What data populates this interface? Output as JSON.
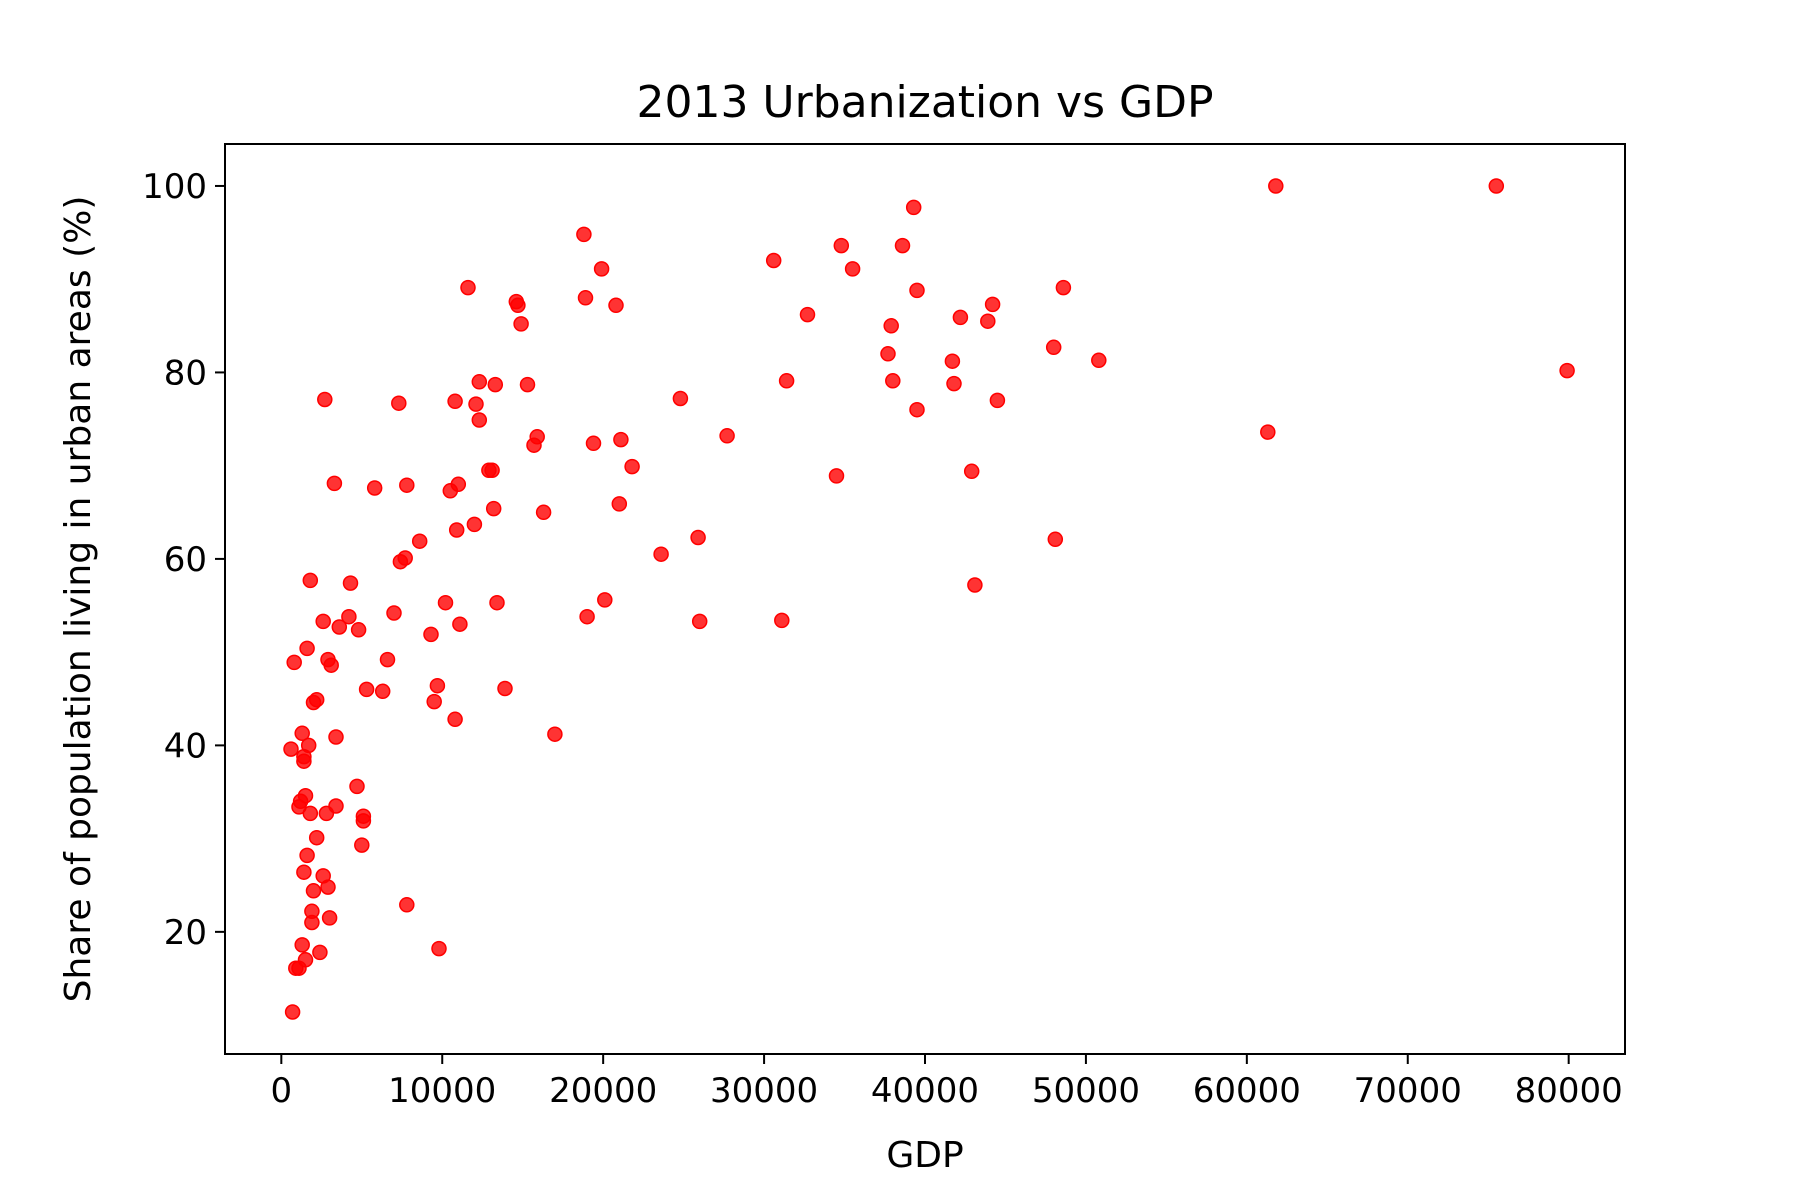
{
  "chart_data": {
    "type": "scatter",
    "title": "2013 Urbanization vs GDP",
    "xlabel": "GDP",
    "ylabel": "Share of population living in urban areas (%)",
    "xlim": [
      -3500,
      83500
    ],
    "ylim": [
      6.9,
      104.5
    ],
    "xticks": [
      0,
      10000,
      20000,
      30000,
      40000,
      50000,
      60000,
      70000,
      80000
    ],
    "yticks": [
      20,
      40,
      60,
      80,
      100
    ],
    "grid": false,
    "marker_color": "#ff0000",
    "series": [
      {
        "points": [
          [
            600,
            39.6
          ],
          [
            700,
            11.4
          ],
          [
            800,
            48.9
          ],
          [
            900,
            16.1
          ],
          [
            1100,
            16.1
          ],
          [
            1100,
            33.4
          ],
          [
            1200,
            34.0
          ],
          [
            1300,
            41.3
          ],
          [
            1300,
            18.6
          ],
          [
            1400,
            38.3
          ],
          [
            1400,
            38.8
          ],
          [
            1400,
            26.4
          ],
          [
            1500,
            34.6
          ],
          [
            1500,
            17.0
          ],
          [
            1600,
            50.4
          ],
          [
            1600,
            28.2
          ],
          [
            1700,
            40.0
          ],
          [
            1800,
            32.7
          ],
          [
            1800,
            57.7
          ],
          [
            1900,
            21.0
          ],
          [
            1900,
            22.2
          ],
          [
            2000,
            44.6
          ],
          [
            2000,
            24.4
          ],
          [
            2200,
            44.9
          ],
          [
            2200,
            30.1
          ],
          [
            2400,
            17.8
          ],
          [
            2600,
            26.0
          ],
          [
            2600,
            53.3
          ],
          [
            2700,
            77.1
          ],
          [
            2800,
            32.7
          ],
          [
            2900,
            49.2
          ],
          [
            2900,
            24.8
          ],
          [
            3000,
            21.5
          ],
          [
            3100,
            48.6
          ],
          [
            3300,
            68.1
          ],
          [
            3400,
            40.9
          ],
          [
            3400,
            33.5
          ],
          [
            3600,
            52.7
          ],
          [
            4200,
            53.8
          ],
          [
            4300,
            57.4
          ],
          [
            4700,
            35.6
          ],
          [
            4800,
            52.4
          ],
          [
            5000,
            29.3
          ],
          [
            5100,
            32.4
          ],
          [
            5100,
            31.9
          ],
          [
            5300,
            46.0
          ],
          [
            5800,
            67.6
          ],
          [
            6300,
            45.8
          ],
          [
            6600,
            49.2
          ],
          [
            7000,
            54.2
          ],
          [
            7300,
            76.7
          ],
          [
            7400,
            59.7
          ],
          [
            7700,
            60.1
          ],
          [
            7800,
            67.9
          ],
          [
            7800,
            22.9
          ],
          [
            8600,
            61.9
          ],
          [
            9300,
            51.9
          ],
          [
            9500,
            44.7
          ],
          [
            9700,
            46.4
          ],
          [
            9800,
            18.2
          ],
          [
            10200,
            55.3
          ],
          [
            10500,
            67.3
          ],
          [
            10800,
            76.9
          ],
          [
            10800,
            42.8
          ],
          [
            10900,
            63.1
          ],
          [
            11000,
            68.0
          ],
          [
            11100,
            53.0
          ],
          [
            11600,
            89.1
          ],
          [
            12000,
            63.7
          ],
          [
            12100,
            76.6
          ],
          [
            12300,
            74.9
          ],
          [
            12300,
            79.0
          ],
          [
            12900,
            69.5
          ],
          [
            13100,
            69.5
          ],
          [
            13200,
            65.4
          ],
          [
            13300,
            78.7
          ],
          [
            13400,
            55.3
          ],
          [
            13900,
            46.1
          ],
          [
            14600,
            87.6
          ],
          [
            14700,
            87.2
          ],
          [
            14900,
            85.2
          ],
          [
            15300,
            78.7
          ],
          [
            15700,
            72.2
          ],
          [
            15900,
            73.1
          ],
          [
            16300,
            65.0
          ],
          [
            17000,
            41.2
          ],
          [
            18800,
            94.8
          ],
          [
            18900,
            88.0
          ],
          [
            19000,
            53.8
          ],
          [
            19400,
            72.4
          ],
          [
            19900,
            91.1
          ],
          [
            20100,
            55.6
          ],
          [
            20800,
            87.2
          ],
          [
            21000,
            65.9
          ],
          [
            21100,
            72.8
          ],
          [
            21800,
            69.9
          ],
          [
            23600,
            60.5
          ],
          [
            24800,
            77.2
          ],
          [
            25900,
            62.3
          ],
          [
            26000,
            53.3
          ],
          [
            27700,
            73.2
          ],
          [
            30600,
            92.0
          ],
          [
            31100,
            53.4
          ],
          [
            31400,
            79.1
          ],
          [
            32700,
            86.2
          ],
          [
            34500,
            68.9
          ],
          [
            34800,
            93.6
          ],
          [
            35500,
            91.1
          ],
          [
            37700,
            82.0
          ],
          [
            37900,
            85.0
          ],
          [
            38000,
            79.1
          ],
          [
            38600,
            93.6
          ],
          [
            39300,
            97.7
          ],
          [
            39500,
            88.8
          ],
          [
            39500,
            76.0
          ],
          [
            41700,
            81.2
          ],
          [
            41800,
            78.8
          ],
          [
            42200,
            85.9
          ],
          [
            42900,
            69.4
          ],
          [
            43100,
            57.2
          ],
          [
            43900,
            85.5
          ],
          [
            44200,
            87.3
          ],
          [
            44500,
            77.0
          ],
          [
            48000,
            82.7
          ],
          [
            48100,
            62.1
          ],
          [
            48600,
            89.1
          ],
          [
            50800,
            81.3
          ],
          [
            61300,
            73.6
          ],
          [
            61800,
            100.0
          ],
          [
            75500,
            100.0
          ],
          [
            79900,
            80.2
          ]
        ]
      }
    ]
  }
}
